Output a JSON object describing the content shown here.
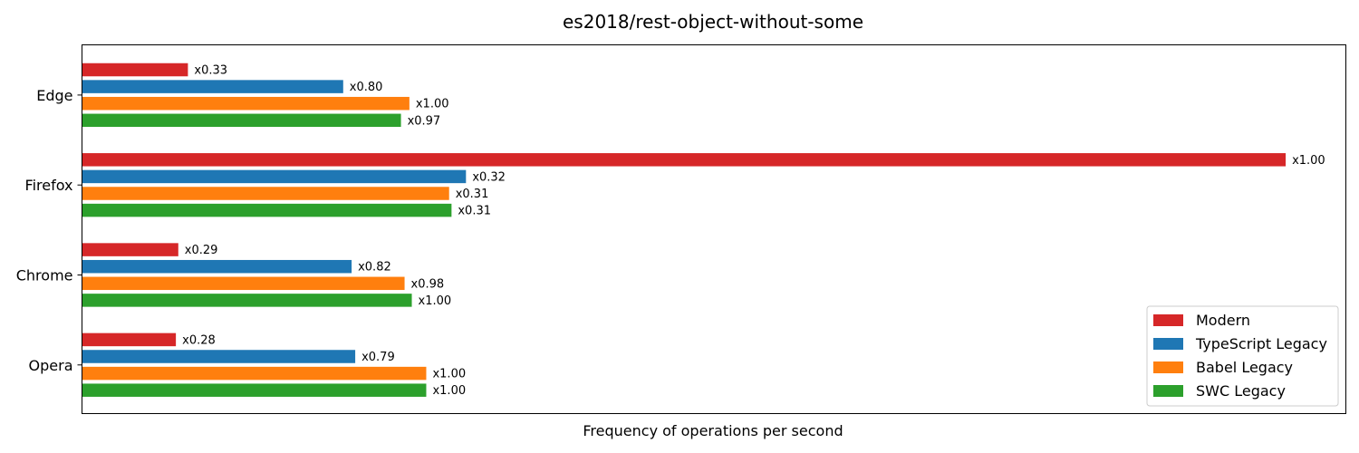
{
  "chart_data": {
    "type": "bar",
    "orientation": "horizontal",
    "title": "es2018/rest-object-without-some",
    "xlabel": "Frequency of operations per second",
    "ylabel": "",
    "categories": [
      "Edge",
      "Firefox",
      "Chrome",
      "Opera"
    ],
    "series": [
      {
        "name": "Modern",
        "color": "#d62728",
        "values": [
          0.088,
          1.0,
          0.08,
          0.078
        ],
        "labels": [
          "x0.33",
          "x1.00",
          "x0.29",
          "x0.28"
        ]
      },
      {
        "name": "TypeScript Legacy",
        "color": "#1f77b4",
        "values": [
          0.217,
          0.319,
          0.224,
          0.227
        ],
        "labels": [
          "x0.80",
          "x0.32",
          "x0.82",
          "x0.79"
        ]
      },
      {
        "name": "Babel Legacy",
        "color": "#ff7f0e",
        "values": [
          0.272,
          0.305,
          0.268,
          0.286
        ],
        "labels": [
          "x1.00",
          "x0.31",
          "x0.98",
          "x1.00"
        ]
      },
      {
        "name": "SWC Legacy",
        "color": "#2ca02c",
        "values": [
          0.265,
          0.307,
          0.274,
          0.286
        ],
        "labels": [
          "x0.97",
          "x0.31",
          "x1.00",
          "x1.00"
        ]
      }
    ],
    "xlim": [
      0,
      1.05
    ],
    "grid": false,
    "xticks_visible": false,
    "legend_position": "lower-right"
  }
}
